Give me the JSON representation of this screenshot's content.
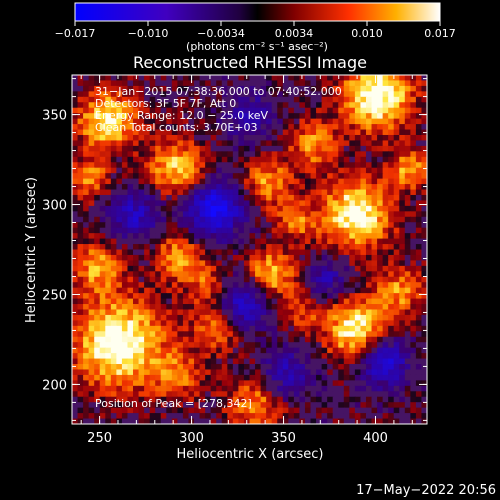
{
  "colorbar": {
    "ticks": [
      "−0.017",
      "−0.010",
      "−0.0034",
      "0.0034",
      "0.010",
      "0.017"
    ],
    "unit_label": "(photons cm⁻² s⁻¹ asec⁻²)"
  },
  "plot": {
    "title": "Reconstructed RHESSI Image",
    "xlabel": "Heliocentric X (arcsec)",
    "ylabel": "Heliocentric Y (arcsec)",
    "xticks": [
      "250",
      "300",
      "350",
      "400"
    ],
    "yticks": [
      "200",
      "250",
      "300",
      "350"
    ],
    "info": [
      "31−Jan−2015 07:38:36.000 to 07:40:52.000",
      "Detectors: 3F 5F 7F, Att 0",
      "Energy Range: 12.0 − 25.0 keV",
      "Clean       Total counts: 3.70E+03"
    ],
    "peak_label": "Position of Peak = [278,342]"
  },
  "footer": {
    "timestamp": "17−May−2022 20:56"
  },
  "image_data": {
    "x_range": [
      235,
      428
    ],
    "y_range": [
      178,
      372
    ],
    "peak": [
      278,
      342
    ]
  }
}
